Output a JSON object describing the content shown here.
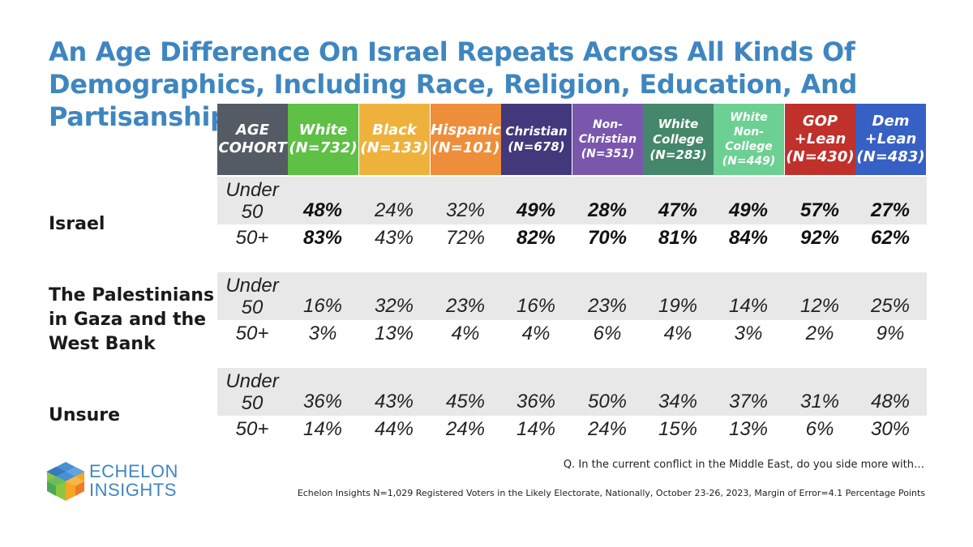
{
  "title": {
    "line1": "An Age Difference On Israel Repeats Across All Kinds Of",
    "line2": "Demographics, Including Race, Religion, Education, And Partisanship"
  },
  "colors": {
    "title": "#3f86c0",
    "band": "#e8e8e8"
  },
  "chart_data": {
    "type": "table",
    "title": "An Age Difference On Israel Repeats Across All Kinds Of Demographics, Including Race, Religion, Education, And Partisanship",
    "columns": [
      {
        "lines": [
          "AGE",
          "COHORT"
        ],
        "color": "#555b64"
      },
      {
        "lines": [
          "White",
          "(N=732)"
        ],
        "color": "#5ec044"
      },
      {
        "lines": [
          "Black",
          "(N=133)"
        ],
        "color": "#eeb23c"
      },
      {
        "lines": [
          "Hispanic",
          "(N=101)"
        ],
        "color": "#ee8e3a"
      },
      {
        "lines": [
          "Christian",
          "(N=678)"
        ],
        "color": "#43387b"
      },
      {
        "lines": [
          "Non-",
          "Christian",
          "(N=351)"
        ],
        "color": "#7a57ad"
      },
      {
        "lines": [
          "White",
          "College",
          "(N=283)"
        ],
        "color": "#44876a"
      },
      {
        "lines": [
          "White",
          "Non-",
          "College",
          "(N=449)"
        ],
        "color": "#6cd092"
      },
      {
        "lines": [
          "GOP",
          "+Lean",
          "(N=430)"
        ],
        "color": "#c0312b"
      },
      {
        "lines": [
          "Dem",
          "+Lean",
          "(N=483)"
        ],
        "color": "#3760c4"
      }
    ],
    "groups": [
      {
        "label": [
          "Israel"
        ],
        "bold": true,
        "rows": [
          {
            "age": [
              "Under",
              "50"
            ],
            "values": [
              "48%",
              "24%",
              "32%",
              "49%",
              "28%",
              "47%",
              "49%",
              "57%",
              "27%"
            ]
          },
          {
            "age": [
              "50+"
            ],
            "values": [
              "83%",
              "43%",
              "72%",
              "82%",
              "70%",
              "81%",
              "84%",
              "92%",
              "62%"
            ]
          }
        ]
      },
      {
        "label": [
          "The Palestinians",
          "in Gaza and the",
          "West Bank"
        ],
        "bold": false,
        "rows": [
          {
            "age": [
              "Under",
              "50"
            ],
            "values": [
              "16%",
              "32%",
              "23%",
              "16%",
              "23%",
              "19%",
              "14%",
              "12%",
              "25%"
            ]
          },
          {
            "age": [
              "50+"
            ],
            "values": [
              "3%",
              "13%",
              "4%",
              "4%",
              "6%",
              "4%",
              "3%",
              "2%",
              "9%"
            ]
          }
        ]
      },
      {
        "label": [
          "Unsure"
        ],
        "bold": false,
        "rows": [
          {
            "age": [
              "Under",
              "50"
            ],
            "values": [
              "36%",
              "43%",
              "45%",
              "36%",
              "50%",
              "34%",
              "37%",
              "31%",
              "48%"
            ]
          },
          {
            "age": [
              "50+"
            ],
            "values": [
              "14%",
              "44%",
              "24%",
              "14%",
              "24%",
              "15%",
              "13%",
              "6%",
              "30%"
            ]
          }
        ]
      }
    ],
    "bold_value_columns_in_first_group": [
      0,
      3,
      4,
      5,
      6,
      7,
      8
    ]
  },
  "footer": {
    "question": "Q. In the current conflict in the Middle East, do you side more with…",
    "source": "Echelon Insights N=1,029 Registered Voters in the Likely Electorate, Nationally, October 23-26, 2023, Margin of Error=4.1 Percentage Points"
  },
  "logo": {
    "line1": "ECHELON",
    "line2": "INSIGHTS"
  }
}
